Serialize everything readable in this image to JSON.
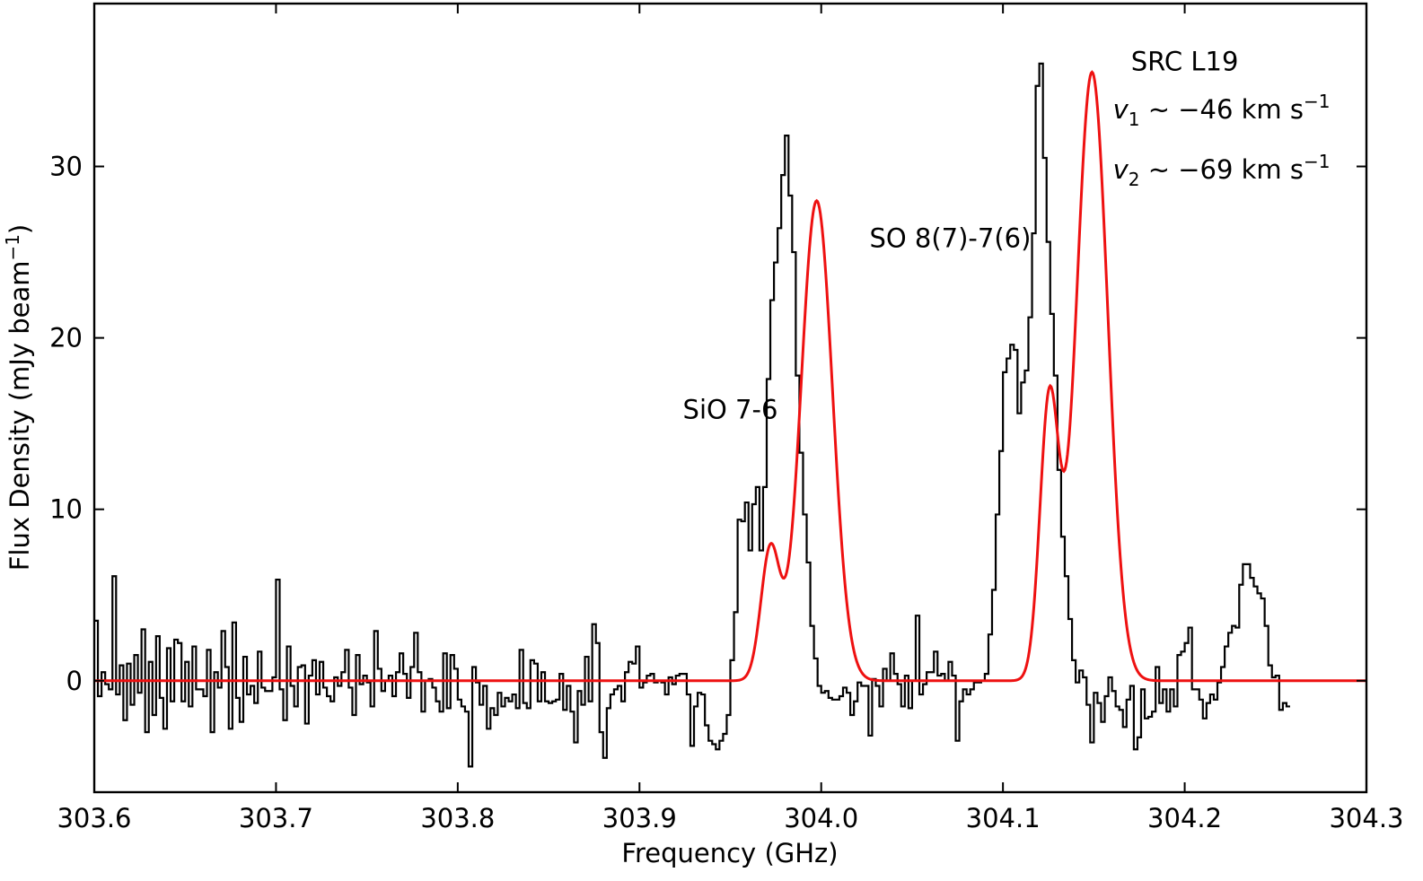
{
  "chart_data": {
    "type": "line",
    "xlabel": "Frequency (GHz)",
    "ylabel": "Flux Density (mJy beam",
    "ylabel_sup": "−1",
    "ylabel_close": ")",
    "xlim": [
      303.6,
      304.3
    ],
    "ylim": [
      -6.5,
      39.5
    ],
    "xticks": [
      303.6,
      303.7,
      303.8,
      303.9,
      304.0,
      304.1,
      304.2,
      304.3
    ],
    "xtick_labels": [
      "303.6",
      "303.7",
      "303.8",
      "303.9",
      "304.0",
      "304.1",
      "304.2",
      "304.3"
    ],
    "yticks": [
      0,
      10,
      20,
      30
    ],
    "ytick_labels": [
      "0",
      "10",
      "20",
      "30"
    ],
    "grid": false,
    "legend": "none",
    "colors": {
      "observed": "#000000",
      "fit": "#ee1111"
    },
    "annotations": [
      {
        "id": "sio",
        "text": "SiO 7-6",
        "x": 303.95,
        "y": 15.3
      },
      {
        "id": "so",
        "text": "SO 8(7)-7(6)",
        "x": 304.071,
        "y": 25.3
      },
      {
        "id": "src",
        "text": "SRC L19",
        "x": 304.2,
        "y": 35.6
      }
    ],
    "velocity_lines": [
      {
        "id": "v1",
        "var": "v",
        "sub": "1",
        "rest": " ∼ −46 km s",
        "sup": "−1",
        "x": 304.28,
        "y": 32.8
      },
      {
        "id": "v2",
        "var": "v",
        "sub": "2",
        "rest": " ∼ −69 km s",
        "sup": "−1",
        "x": 304.28,
        "y": 29.3
      }
    ],
    "series": [
      {
        "kind": "step",
        "x_start": 303.6,
        "x_step": 0.002,
        "values": [
          3.5,
          -0.9,
          0.5,
          -0.2,
          -0.5,
          6.1,
          -0.8,
          0.9,
          -2.3,
          1.0,
          -1.4,
          1.5,
          -0.7,
          3.0,
          -3.0,
          1.1,
          -2.0,
          2.6,
          -1.0,
          -2.8,
          1.9,
          -1.2,
          2.4,
          2.2,
          -1.2,
          1.1,
          -1.5,
          2.0,
          -0.5,
          -0.5,
          -0.9,
          1.8,
          -3.0,
          0.5,
          -0.4,
          2.9,
          0.8,
          -2.8,
          3.4,
          -1.0,
          -2.4,
          1.4,
          -0.8,
          -0.3,
          -1.3,
          1.7,
          -0.4,
          -0.6,
          -0.6,
          0.2,
          5.9,
          -0.5,
          -2.3,
          2.0,
          -0.3,
          -1.5,
          0.8,
          0.9,
          -2.5,
          0.3,
          1.2,
          -0.8,
          1.1,
          -0.4,
          -0.9,
          -1.2,
          0.2,
          -0.3,
          0.5,
          1.8,
          -0.4,
          -2.0,
          1.5,
          -0.2,
          0.3,
          -0.1,
          -1.5,
          2.9,
          0.7,
          -0.6,
          0.0,
          0.3,
          -0.9,
          0.5,
          1.6,
          0.4,
          -1.0,
          0.8,
          2.8,
          0.5,
          -1.8,
          0.0,
          0.1,
          -0.4,
          -1.2,
          -1.8,
          1.6,
          -1.6,
          1.5,
          0.7,
          -1.1,
          -1.5,
          -1.8,
          -5.0,
          0.8,
          -0.1,
          -1.4,
          -0.3,
          -2.8,
          -1.6,
          -2.0,
          -0.7,
          -1.5,
          -1.0,
          -1.2,
          -0.8,
          -1.6,
          1.8,
          -1.3,
          -1.6,
          1.2,
          1.0,
          -1.2,
          0.5,
          -1.2,
          -1.3,
          -1.2,
          -1.1,
          0.4,
          -1.7,
          -0.3,
          -1.8,
          -3.6,
          -0.6,
          -1.4,
          1.4,
          -1.2,
          3.3,
          2.2,
          -3.0,
          -4.5,
          -1.6,
          -0.8,
          -0.5,
          -0.3,
          -1.2,
          0.5,
          1.1,
          1.0,
          2.0,
          -0.4,
          -0.1,
          0.3,
          0.4,
          -0.1,
          0.0,
          -0.1,
          -0.8,
          0.2,
          -0.2,
          0.3,
          0.4,
          0.4,
          -0.8,
          -3.8,
          -1.5,
          -0.7,
          -0.8,
          -2.6,
          -3.5,
          -3.7,
          -4.0,
          -3.5,
          -3.1,
          -2.0,
          1.2,
          4.0,
          9.4,
          9.3,
          10.4,
          7.6,
          10.3,
          11.3,
          7.6,
          11.3,
          17.6,
          22.2,
          24.4,
          26.4,
          29.5,
          31.8,
          28.3,
          25.0,
          17.8,
          13.3,
          9.7,
          6.9,
          3.2,
          1.3,
          -0.3,
          -0.7,
          -0.6,
          -1.0,
          -1.1,
          -1.1,
          -0.9,
          -0.4,
          -0.7,
          -2.0,
          -1.2,
          -0.1,
          -0.3,
          -0.3,
          -3.2,
          0.1,
          -0.3,
          -1.5,
          0.7,
          0.0,
          1.6,
          0.4,
          -0.2,
          -1.5,
          0.3,
          -1.6,
          0.0,
          3.8,
          -0.8,
          -0.2,
          0.5,
          0.5,
          1.7,
          0.3,
          0.4,
          0.0,
          1.1,
          0.3,
          -3.5,
          -1.2,
          -0.5,
          -0.8,
          -0.5,
          -0.1,
          -0.1,
          0.0,
          0.4,
          2.7,
          5.3,
          9.7,
          13.4,
          18.0,
          18.8,
          19.6,
          19.3,
          15.6,
          17.4,
          18.1,
          21.2,
          26.1,
          34.7,
          36.0,
          30.5,
          25.6,
          21.4,
          17.8,
          12.3,
          8.4,
          6.1,
          3.6,
          1.2,
          -0.1,
          0.6,
          0.2,
          -1.4,
          -3.6,
          -0.7,
          -1.3,
          -2.4,
          -0.9,
          0.2,
          -0.6,
          -1.5,
          -1.7,
          -2.7,
          -1.1,
          -0.3,
          -4.0,
          -3.3,
          -0.5,
          -2.2,
          -2.1,
          -1.8,
          0.8,
          -1.3,
          -0.5,
          -1.8,
          -0.5,
          -1.5,
          1.5,
          1.7,
          2.2,
          3.1,
          -0.5,
          -0.5,
          -1.1,
          -2.2,
          -1.3,
          -0.8,
          -1.1,
          -0.1,
          0.8,
          2.0,
          2.8,
          3.2,
          3.1,
          5.6,
          6.8,
          6.8,
          6.0,
          5.5,
          5.1,
          4.8,
          3.2,
          0.9,
          0.2,
          0.3,
          -1.7,
          -1.3,
          -1.5
        ]
      },
      {
        "kind": "gaussian_fit",
        "baseline": 0,
        "components": [
          {
            "center": 303.972,
            "amplitude": 7.6,
            "sigma": 0.0052
          },
          {
            "center": 303.9975,
            "amplitude": 28.0,
            "sigma": 0.0087
          },
          {
            "center": 304.1255,
            "amplitude": 16.2,
            "sigma": 0.0052
          },
          {
            "center": 304.149,
            "amplitude": 35.5,
            "sigma": 0.0087
          }
        ]
      }
    ]
  }
}
